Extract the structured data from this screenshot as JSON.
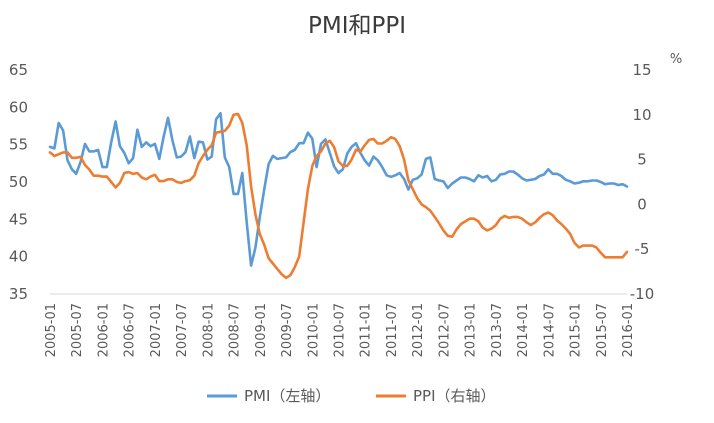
{
  "colors": {
    "pmi": "#5b9bd5",
    "ppi": "#ed7d31"
  },
  "chart_data": {
    "type": "line",
    "title": "PMI和PPI",
    "left_axis": {
      "min": 35,
      "max": 65,
      "ticks": [
        35,
        40,
        45,
        50,
        55,
        60,
        65
      ]
    },
    "right_axis": {
      "unit": "%",
      "min": -10,
      "max": 15,
      "ticks": [
        -10,
        -5,
        0,
        5,
        10,
        15
      ]
    },
    "x_ticks": [
      "2005-01",
      "2005-07",
      "2006-01",
      "2006-07",
      "2007-01",
      "2007-07",
      "2008-01",
      "2008-07",
      "2009-01",
      "2009-07",
      "2010-01",
      "2010-07",
      "2011-01",
      "2011-07",
      "2012-01",
      "2012-07",
      "2013-01",
      "2013-07",
      "2014-01",
      "2014-07",
      "2015-01",
      "2015-07",
      "2016-01"
    ],
    "grid": false,
    "legend_position": "bottom",
    "series": [
      {
        "name": "PMI（左轴）",
        "axis": "left",
        "values": [
          54.7,
          54.5,
          57.9,
          56.9,
          52.9,
          51.7,
          51.1,
          52.7,
          55.1,
          54.1,
          54.1,
          54.3,
          52.0,
          52.0,
          55.3,
          58.1,
          54.8,
          53.9,
          52.5,
          53.2,
          57.0,
          54.7,
          55.3,
          54.8,
          55.1,
          53.1,
          56.1,
          58.6,
          55.6,
          53.3,
          53.4,
          54.0,
          56.1,
          53.2,
          55.4,
          55.3,
          53.0,
          53.4,
          58.4,
          59.2,
          53.3,
          52.0,
          48.4,
          48.4,
          51.2,
          44.6,
          38.8,
          41.2,
          45.3,
          49.0,
          52.4,
          53.5,
          53.1,
          53.2,
          53.3,
          54.0,
          54.3,
          55.2,
          55.2,
          56.6,
          55.8,
          52.0,
          55.1,
          55.7,
          53.9,
          52.1,
          51.2,
          51.7,
          53.8,
          54.7,
          55.2,
          53.9,
          52.9,
          52.2,
          53.4,
          52.9,
          52.0,
          50.9,
          50.7,
          50.9,
          51.2,
          50.4,
          49.0,
          50.3,
          50.5,
          51.0,
          53.1,
          53.3,
          50.4,
          50.2,
          50.1,
          49.2,
          49.8,
          50.2,
          50.6,
          50.6,
          50.4,
          50.1,
          50.9,
          50.6,
          50.8,
          50.1,
          50.3,
          51.0,
          51.1,
          51.4,
          51.4,
          51.0,
          50.5,
          50.2,
          50.3,
          50.4,
          50.8,
          51.0,
          51.7,
          51.1,
          51.1,
          50.8,
          50.3,
          50.1,
          49.8,
          49.9,
          50.1,
          50.1,
          50.2,
          50.2,
          50.0,
          49.7,
          49.8,
          49.8,
          49.6,
          49.7,
          49.4
        ]
      },
      {
        "name": "PPI（右轴）",
        "axis": "right",
        "values": [
          5.8,
          5.4,
          5.6,
          5.8,
          5.8,
          5.2,
          5.2,
          5.3,
          4.4,
          3.9,
          3.2,
          3.2,
          3.1,
          3.1,
          2.5,
          1.9,
          2.4,
          3.5,
          3.6,
          3.4,
          3.5,
          3.0,
          2.8,
          3.1,
          3.3,
          2.6,
          2.6,
          2.8,
          2.8,
          2.5,
          2.4,
          2.6,
          2.7,
          3.2,
          4.6,
          5.4,
          6.1,
          6.6,
          8.0,
          8.1,
          8.2,
          8.8,
          10.0,
          10.1,
          9.1,
          6.6,
          2.0,
          -1.1,
          -3.3,
          -4.5,
          -6.0,
          -6.6,
          -7.2,
          -7.8,
          -8.2,
          -7.9,
          -7.0,
          -5.8,
          -2.1,
          1.7,
          4.3,
          5.4,
          5.9,
          6.8,
          7.1,
          6.4,
          4.8,
          4.3,
          4.3,
          5.0,
          6.1,
          5.9,
          6.6,
          7.2,
          7.3,
          6.8,
          6.8,
          7.1,
          7.5,
          7.3,
          6.5,
          5.0,
          2.7,
          1.7,
          0.7,
          0.0,
          -0.3,
          -0.7,
          -1.4,
          -2.1,
          -2.9,
          -3.5,
          -3.6,
          -2.8,
          -2.2,
          -1.9,
          -1.6,
          -1.6,
          -1.9,
          -2.6,
          -2.9,
          -2.7,
          -2.3,
          -1.6,
          -1.3,
          -1.5,
          -1.4,
          -1.4,
          -1.6,
          -2.0,
          -2.3,
          -2.0,
          -1.5,
          -1.1,
          -0.9,
          -1.2,
          -1.8,
          -2.2,
          -2.7,
          -3.3,
          -4.3,
          -4.8,
          -4.6,
          -4.6,
          -4.6,
          -4.8,
          -5.4,
          -5.9,
          -5.9,
          -5.9,
          -5.9,
          -5.9,
          -5.3
        ]
      }
    ]
  }
}
